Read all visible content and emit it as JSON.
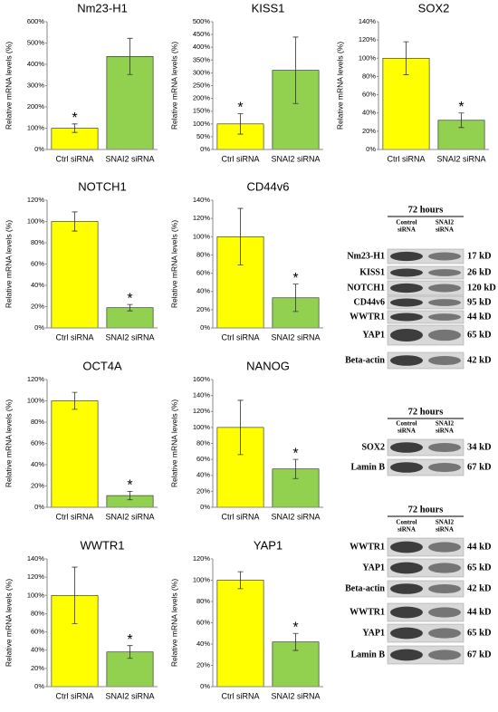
{
  "chart_data": [
    {
      "type": "bar",
      "title": "Nm23-H1",
      "y_label": "Relative mRNA levels (%)",
      "categories": [
        "Ctrl siRNA",
        "SNAI2 siRNA"
      ],
      "values": [
        100,
        437
      ],
      "errors": [
        20,
        85
      ],
      "colors": [
        "#ffff00",
        "#92d050"
      ],
      "ylim": [
        0,
        600
      ],
      "yticks": [
        {
          "value": 0,
          "label": "0%"
        },
        {
          "value": 100,
          "label": "100%"
        },
        {
          "value": 200,
          "label": "200%"
        },
        {
          "value": 300,
          "label": "300%"
        },
        {
          "value": 400,
          "label": "400%"
        },
        {
          "value": 500,
          "label": "500%"
        },
        {
          "value": 600,
          "label": "600%"
        }
      ],
      "annotations": [
        {
          "text": "*",
          "category": "Ctrl siRNA"
        }
      ]
    },
    {
      "type": "bar",
      "title": "KISS1",
      "y_label": "Relative mRNA levels (%)",
      "categories": [
        "Ctrl siRNA",
        "SNAI2 siRNA"
      ],
      "values": [
        100,
        310
      ],
      "errors": [
        40,
        130
      ],
      "colors": [
        "#ffff00",
        "#92d050"
      ],
      "ylim": [
        0,
        500
      ],
      "yticks": [
        {
          "value": 0,
          "label": "0%"
        },
        {
          "value": 50,
          "label": "50%"
        },
        {
          "value": 100,
          "label": "100%"
        },
        {
          "value": 150,
          "label": "150%"
        },
        {
          "value": 200,
          "label": "200%"
        },
        {
          "value": 250,
          "label": "250%"
        },
        {
          "value": 300,
          "label": "300%"
        },
        {
          "value": 350,
          "label": "350%"
        },
        {
          "value": 400,
          "label": "400%"
        },
        {
          "value": 450,
          "label": "450%"
        },
        {
          "value": 500,
          "label": "500%"
        }
      ],
      "annotations": [
        {
          "text": "*",
          "category": "Ctrl siRNA"
        }
      ]
    },
    {
      "type": "bar",
      "title": "SOX2",
      "y_label": "Relative mRNA levels (%)",
      "categories": [
        "Ctrl siRNA",
        "SNAI2 siRNA"
      ],
      "values": [
        100,
        32
      ],
      "errors": [
        18,
        8
      ],
      "colors": [
        "#ffff00",
        "#92d050"
      ],
      "ylim": [
        0,
        140
      ],
      "yticks": [
        {
          "value": 0,
          "label": "0%"
        },
        {
          "value": 20,
          "label": "20%"
        },
        {
          "value": 40,
          "label": "40%"
        },
        {
          "value": 60,
          "label": "60%"
        },
        {
          "value": 80,
          "label": "80%"
        },
        {
          "value": 100,
          "label": "100%"
        },
        {
          "value": 120,
          "label": "120%"
        },
        {
          "value": 140,
          "label": "140%"
        }
      ],
      "annotations": [
        {
          "text": "*",
          "category": "SNAI2 siRNA"
        }
      ]
    },
    {
      "type": "bar",
      "title": "NOTCH1",
      "y_label": "Relative mRNA levels (%)",
      "categories": [
        "Ctrl siRNA",
        "SNAI2 siRNA"
      ],
      "values": [
        100,
        19
      ],
      "errors": [
        9,
        3
      ],
      "colors": [
        "#ffff00",
        "#92d050"
      ],
      "ylim": [
        0,
        120
      ],
      "yticks": [
        {
          "value": 0,
          "label": "0%"
        },
        {
          "value": 20,
          "label": "20%"
        },
        {
          "value": 40,
          "label": "40%"
        },
        {
          "value": 60,
          "label": "60%"
        },
        {
          "value": 80,
          "label": "80%"
        },
        {
          "value": 100,
          "label": "100%"
        },
        {
          "value": 120,
          "label": "120%"
        }
      ],
      "annotations": [
        {
          "text": "*",
          "category": "SNAI2 siRNA"
        }
      ]
    },
    {
      "type": "bar",
      "title": "CD44v6",
      "y_label": "Relative mRNA levels (%)",
      "categories": [
        "Ctrl siRNA",
        "SNAI2 siRNA"
      ],
      "values": [
        100,
        33
      ],
      "errors": [
        31,
        15
      ],
      "colors": [
        "#ffff00",
        "#92d050"
      ],
      "ylim": [
        0,
        140
      ],
      "yticks": [
        {
          "value": 0,
          "label": "0%"
        },
        {
          "value": 20,
          "label": "20%"
        },
        {
          "value": 40,
          "label": "40%"
        },
        {
          "value": 60,
          "label": "60%"
        },
        {
          "value": 80,
          "label": "80%"
        },
        {
          "value": 100,
          "label": "100%"
        },
        {
          "value": 120,
          "label": "120%"
        },
        {
          "value": 140,
          "label": "140%"
        }
      ],
      "annotations": [
        {
          "text": "*",
          "category": "SNAI2 siRNA"
        }
      ]
    },
    {
      "type": "bar",
      "title": "OCT4A",
      "y_label": "Relative mRNA levels (%)",
      "categories": [
        "Ctrl siRNA",
        "SNAI2 siRNA"
      ],
      "values": [
        100,
        11
      ],
      "errors": [
        8,
        4
      ],
      "colors": [
        "#ffff00",
        "#92d050"
      ],
      "ylim": [
        0,
        120
      ],
      "yticks": [
        {
          "value": 0,
          "label": "0%"
        },
        {
          "value": 20,
          "label": "20%"
        },
        {
          "value": 40,
          "label": "40%"
        },
        {
          "value": 60,
          "label": "60%"
        },
        {
          "value": 80,
          "label": "80%"
        },
        {
          "value": 100,
          "label": "100%"
        },
        {
          "value": 120,
          "label": "120%"
        }
      ],
      "annotations": [
        {
          "text": "*",
          "category": "SNAI2 siRNA"
        }
      ]
    },
    {
      "type": "bar",
      "title": "NANOG",
      "y_label": "Relative mRNA levels (%)",
      "categories": [
        "Ctrl siRNA",
        "SNAI2 siRNA"
      ],
      "values": [
        100,
        48
      ],
      "errors": [
        34,
        12
      ],
      "colors": [
        "#ffff00",
        "#92d050"
      ],
      "ylim": [
        0,
        160
      ],
      "yticks": [
        {
          "value": 0,
          "label": "0%"
        },
        {
          "value": 20,
          "label": "20%"
        },
        {
          "value": 40,
          "label": "40%"
        },
        {
          "value": 60,
          "label": "60%"
        },
        {
          "value": 80,
          "label": "80%"
        },
        {
          "value": 100,
          "label": "100%"
        },
        {
          "value": 120,
          "label": "120%"
        },
        {
          "value": 140,
          "label": "140%"
        },
        {
          "value": 160,
          "label": "160%"
        }
      ],
      "annotations": [
        {
          "text": "*",
          "category": "SNAI2 siRNA"
        }
      ]
    },
    {
      "type": "bar",
      "title": "WWTR1",
      "y_label": "Relative mRNA levels (%)",
      "categories": [
        "Ctrl siRNA",
        "SNAI2 siRNA"
      ],
      "values": [
        100,
        38
      ],
      "errors": [
        31,
        7
      ],
      "colors": [
        "#ffff00",
        "#92d050"
      ],
      "ylim": [
        0,
        140
      ],
      "yticks": [
        {
          "value": 0,
          "label": "0%"
        },
        {
          "value": 20,
          "label": "20%"
        },
        {
          "value": 40,
          "label": "40%"
        },
        {
          "value": 60,
          "label": "60%"
        },
        {
          "value": 80,
          "label": "80%"
        },
        {
          "value": 100,
          "label": "100%"
        },
        {
          "value": 120,
          "label": "120%"
        },
        {
          "value": 140,
          "label": "140%"
        }
      ],
      "annotations": [
        {
          "text": "*",
          "category": "SNAI2 siRNA"
        }
      ]
    },
    {
      "type": "bar",
      "title": "YAP1",
      "y_label": "Relative mRNA levels (%)",
      "categories": [
        "Ctrl siRNA",
        "SNAI2 siRNA"
      ],
      "values": [
        100,
        42
      ],
      "errors": [
        8,
        8
      ],
      "colors": [
        "#ffff00",
        "#92d050"
      ],
      "ylim": [
        0,
        120
      ],
      "yticks": [
        {
          "value": 0,
          "label": "0%"
        },
        {
          "value": 20,
          "label": "20%"
        },
        {
          "value": 40,
          "label": "40%"
        },
        {
          "value": 60,
          "label": "60%"
        },
        {
          "value": 80,
          "label": "80%"
        },
        {
          "value": 100,
          "label": "100%"
        },
        {
          "value": 120,
          "label": "120%"
        }
      ],
      "annotations": [
        {
          "text": "*",
          "category": "SNAI2 siRNA"
        }
      ]
    }
  ],
  "blots": [
    {
      "header": "72 hours",
      "columns": [
        [
          "Control",
          "siRNA"
        ],
        [
          "SNAI2",
          "siRNA"
        ]
      ],
      "rows": [
        {
          "label": "Nm23-H1",
          "size": "17 kD"
        },
        {
          "label": "KISS1",
          "size": "26 kD"
        },
        {
          "label": "NOTCH1",
          "size": "120 kD"
        },
        {
          "label": "CD44v6",
          "size": "95 kD"
        },
        {
          "label": "WWTR1",
          "size": "44 kD"
        },
        {
          "label": "YAP1",
          "size": "65 kD"
        },
        {
          "label": "Beta-actin",
          "size": "42 kD"
        }
      ]
    },
    {
      "header": "72 hours",
      "columns": [
        [
          "Control",
          "siRNA"
        ],
        [
          "SNAI2",
          "siRNA"
        ]
      ],
      "rows": [
        {
          "label": "SOX2",
          "size": "34 kD"
        },
        {
          "label": "Lamin B",
          "size": "67 kD"
        }
      ]
    },
    {
      "header": "72 hours",
      "columns": [
        [
          "Control",
          "siRNA"
        ],
        [
          "SNAI2",
          "siRNA"
        ]
      ],
      "rows": [
        {
          "label": "WWTR1",
          "size": "44 kD"
        },
        {
          "label": "YAP1",
          "size": "65 kD"
        },
        {
          "label": "Beta-actin",
          "size": "42 kD"
        },
        {
          "label": "WWTR1",
          "size": "44 kD"
        },
        {
          "label": "YAP1",
          "size": "65 kD"
        },
        {
          "label": "Lamin B",
          "size": "67 kD"
        }
      ]
    }
  ]
}
